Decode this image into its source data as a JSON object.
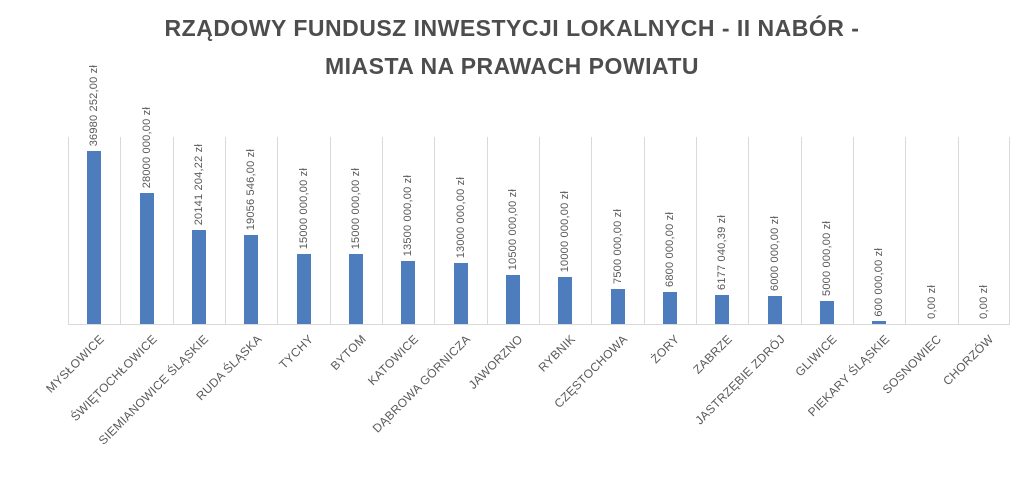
{
  "title": {
    "line1": "RZĄDOWY FUNDUSZ INWESTYCJI LOKALNYCH - II NABÓR -",
    "line2": "MIASTA NA PRAWACH POWIATU"
  },
  "chart_data": {
    "type": "bar",
    "title": "RZĄDOWY FUNDUSZ INWESTYCJI LOKALNYCH - II NABÓR - MIASTA NA PRAWACH POWIATU",
    "categories": [
      "MYSŁOWICE",
      "ŚWIĘTOCHŁOWICE",
      "SIEMIANOWICE ŚLĄSKIE",
      "RUDA ŚLĄSKA",
      "TYCHY",
      "BYTOM",
      "KATOWICE",
      "DĄBROWA GÓRNICZA",
      "JAWORZNO",
      "RYBNIK",
      "CZĘSTOCHOWA",
      "ŻORY",
      "ZABRZE",
      "JASTRZĘBIE ZDRÓJ",
      "GLIWICE",
      "PIEKARY ŚLĄSKIE",
      "SOSNOWIEC",
      "CHORZÓW"
    ],
    "values": [
      36980252.0,
      28000000.0,
      20141204.22,
      19056546.0,
      15000000.0,
      15000000.0,
      13500000.0,
      13000000.0,
      10500000.0,
      10000000.0,
      7500000.0,
      6800000.0,
      6177040.39,
      6000000.0,
      5000000.0,
      600000.0,
      0.0,
      0.0
    ],
    "data_labels": [
      "36980 252,00 zł",
      "28000 000,00 zł",
      "20141 204,22 zł",
      "19056 546,00 zł",
      "15000 000,00 zł",
      "15000 000,00 zł",
      "13500 000,00 zł",
      "13000 000,00 zł",
      "10500 000,00 zł",
      "10000 000,00 zł",
      "7500 000,00 zł",
      "6800 000,00 zł",
      "6177 040,39 zł",
      "6000 000,00 zł",
      "5000 000,00 zł",
      "600 000,00 zł",
      "0,00 zł",
      "0,00 zł"
    ],
    "currency": "zł",
    "xlabel": "",
    "ylabel": "",
    "ylim": [
      0,
      40000000
    ],
    "y_axis_visible": false,
    "grid": "vertical category gridlines only",
    "legend": "none",
    "data_label_rotation": -90,
    "category_label_rotation": -45,
    "colors": {
      "bar": "#4e7dbd",
      "gridline": "#d9d9d9",
      "labels": "#595959",
      "title": "#4d4d4d",
      "background": "#ffffff"
    }
  }
}
